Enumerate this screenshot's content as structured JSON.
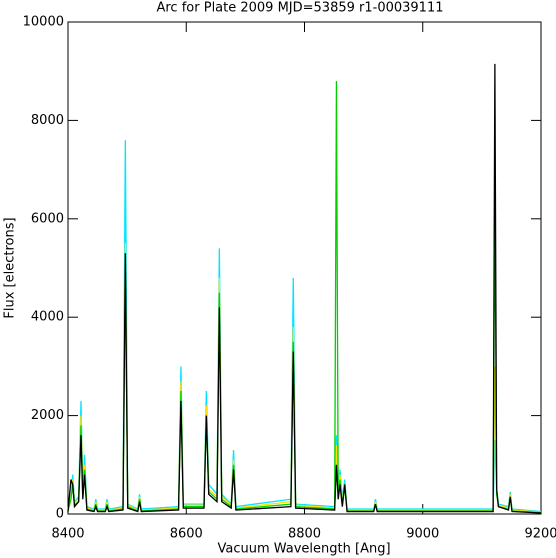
{
  "chart_data": {
    "type": "line",
    "title": "Arc for Plate 2009  MJD=53859  r1-00039111",
    "x_label": "Vacuum Wavelength [Ang]",
    "y_label": "Flux [electrons]",
    "xlim": [
      8400,
      9200
    ],
    "xticks": [
      8400,
      8600,
      8800,
      9000,
      9200
    ],
    "ylim": [
      0,
      10000
    ],
    "yticks": [
      0,
      2000,
      4000,
      6000,
      8000,
      10000
    ],
    "grid": false,
    "x": [
      8400,
      8405,
      8408,
      8411,
      8418,
      8422,
      8425,
      8428,
      8432,
      8444,
      8447,
      8450,
      8463,
      8466,
      8469,
      8493,
      8497,
      8501,
      8518,
      8521,
      8524,
      8587,
      8591,
      8595,
      8630,
      8634,
      8638,
      8652,
      8656,
      8660,
      8676,
      8680,
      8684,
      8777,
      8781,
      8785,
      8851,
      8854,
      8857,
      8860,
      8864,
      8868,
      8872,
      8917,
      8920,
      8923,
      9119,
      9122,
      9125,
      9128,
      9145,
      9148,
      9151,
      9200
    ],
    "series": [
      {
        "color": "#00e5ff",
        "values": [
          100,
          400,
          800,
          250,
          350,
          2300,
          450,
          1200,
          150,
          100,
          300,
          100,
          100,
          300,
          100,
          150,
          7600,
          200,
          100,
          400,
          100,
          150,
          3000,
          200,
          200,
          2500,
          600,
          400,
          5400,
          400,
          200,
          1300,
          150,
          300,
          4800,
          200,
          150,
          1600,
          500,
          900,
          300,
          700,
          100,
          100,
          300,
          100,
          100,
          1500,
          500,
          200,
          150,
          450,
          100,
          50
        ]
      },
      {
        "color": "#ffe000",
        "values": [
          80,
          350,
          700,
          200,
          300,
          2000,
          400,
          1000,
          120,
          80,
          250,
          80,
          80,
          250,
          80,
          120,
          5500,
          180,
          80,
          350,
          80,
          120,
          2700,
          180,
          180,
          2200,
          500,
          350,
          4800,
          350,
          180,
          1100,
          120,
          250,
          3800,
          180,
          120,
          1400,
          400,
          800,
          250,
          600,
          80,
          80,
          250,
          80,
          80,
          3000,
          450,
          180,
          120,
          400,
          80,
          40
        ]
      },
      {
        "color": "#00d000",
        "values": [
          60,
          300,
          600,
          180,
          250,
          1800,
          350,
          900,
          100,
          60,
          200,
          60,
          60,
          200,
          60,
          100,
          5000,
          150,
          60,
          300,
          60,
          100,
          2500,
          150,
          150,
          2000,
          450,
          300,
          4500,
          300,
          150,
          1000,
          100,
          200,
          3500,
          150,
          100,
          8800,
          350,
          700,
          200,
          550,
          60,
          60,
          200,
          60,
          60,
          6500,
          400,
          150,
          100,
          350,
          60,
          30
        ]
      },
      {
        "color": "#000000",
        "values": [
          50,
          700,
          600,
          150,
          250,
          1600,
          300,
          800,
          80,
          50,
          150,
          50,
          50,
          150,
          50,
          80,
          5300,
          120,
          50,
          250,
          50,
          80,
          2300,
          120,
          120,
          2000,
          400,
          250,
          4200,
          250,
          120,
          900,
          80,
          150,
          3300,
          120,
          80,
          1000,
          300,
          600,
          150,
          600,
          50,
          50,
          200,
          50,
          50,
          9150,
          500,
          150,
          80,
          350,
          50,
          20
        ]
      }
    ]
  }
}
